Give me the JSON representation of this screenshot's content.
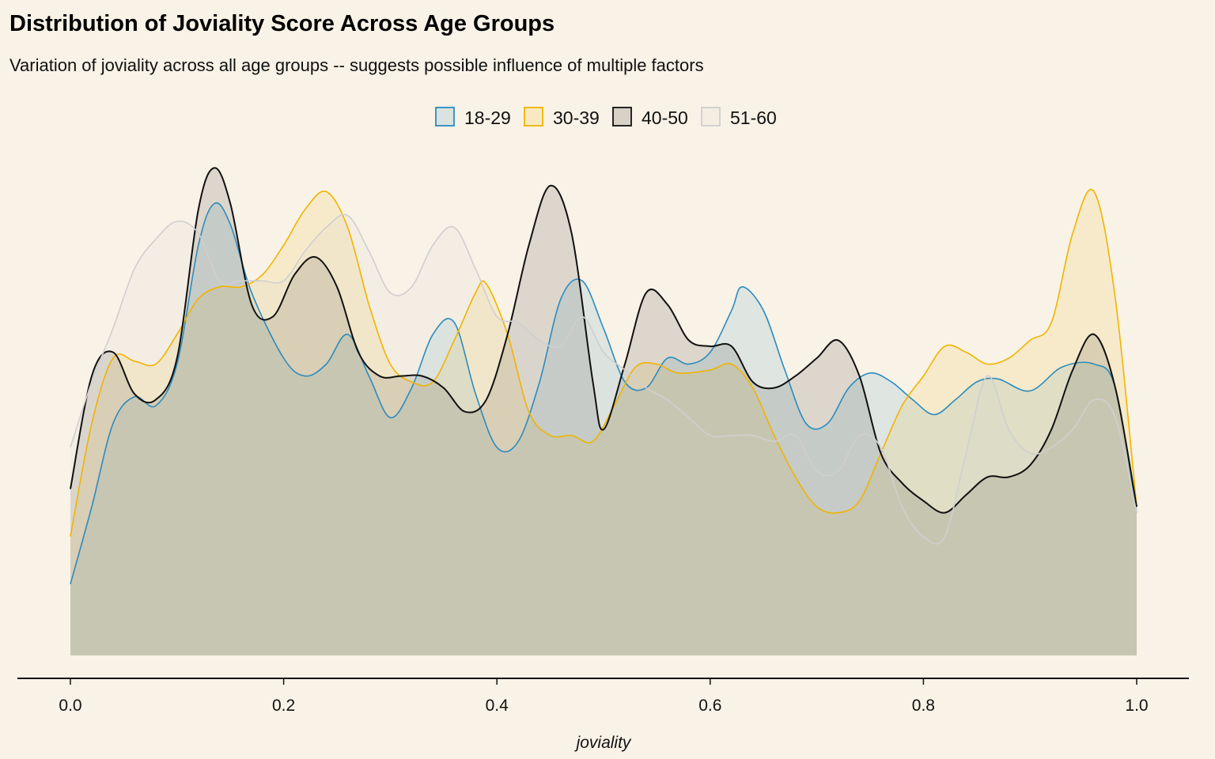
{
  "title": "Distribution of Joviality Score Across Age Groups",
  "subtitle": "Variation of joviality across all age groups -- suggests possible influence of multiple factors",
  "colors": {
    "background": "#f9f2e6",
    "18-29": "#2b8cbe",
    "30-39": "#f0b400",
    "40-50": "#111111",
    "51-60": "#cfcfcf"
  },
  "chart_data": {
    "type": "area",
    "title": "Distribution of Joviality Score Across Age Groups",
    "subtitle": "Variation of joviality across all age groups -- suggests possible influence of multiple factors",
    "xlabel": "joviality",
    "ylabel": "",
    "xlim": [
      0.0,
      1.0
    ],
    "ylim": [
      0.0,
      1.6
    ],
    "y_axis_shown": false,
    "grid": false,
    "legend_position": "top",
    "x_ticks": [
      "0.0",
      "0.2",
      "0.4",
      "0.6",
      "0.8",
      "1.0"
    ],
    "x_tick_values": [
      0.0,
      0.2,
      0.4,
      0.6,
      0.8,
      1.0
    ],
    "series": [
      {
        "name": "18-29",
        "color": "#2b8cbe",
        "points": [
          [
            0.0,
            0.24
          ],
          [
            0.02,
            0.5
          ],
          [
            0.04,
            0.78
          ],
          [
            0.06,
            0.87
          ],
          [
            0.08,
            0.84
          ],
          [
            0.1,
            0.98
          ],
          [
            0.12,
            1.38
          ],
          [
            0.135,
            1.52
          ],
          [
            0.15,
            1.45
          ],
          [
            0.17,
            1.22
          ],
          [
            0.2,
            1.0
          ],
          [
            0.22,
            0.94
          ],
          [
            0.24,
            0.98
          ],
          [
            0.26,
            1.08
          ],
          [
            0.28,
            0.94
          ],
          [
            0.3,
            0.8
          ],
          [
            0.32,
            0.9
          ],
          [
            0.34,
            1.08
          ],
          [
            0.36,
            1.12
          ],
          [
            0.38,
            0.88
          ],
          [
            0.4,
            0.7
          ],
          [
            0.42,
            0.72
          ],
          [
            0.44,
            0.92
          ],
          [
            0.46,
            1.2
          ],
          [
            0.48,
            1.26
          ],
          [
            0.5,
            1.1
          ],
          [
            0.52,
            0.92
          ],
          [
            0.54,
            0.9
          ],
          [
            0.56,
            1.0
          ],
          [
            0.58,
            0.98
          ],
          [
            0.6,
            1.02
          ],
          [
            0.62,
            1.16
          ],
          [
            0.63,
            1.24
          ],
          [
            0.65,
            1.16
          ],
          [
            0.67,
            0.96
          ],
          [
            0.69,
            0.78
          ],
          [
            0.71,
            0.78
          ],
          [
            0.73,
            0.9
          ],
          [
            0.75,
            0.95
          ],
          [
            0.77,
            0.92
          ],
          [
            0.79,
            0.86
          ],
          [
            0.81,
            0.81
          ],
          [
            0.83,
            0.86
          ],
          [
            0.85,
            0.92
          ],
          [
            0.87,
            0.93
          ],
          [
            0.9,
            0.89
          ],
          [
            0.93,
            0.97
          ],
          [
            0.96,
            0.98
          ],
          [
            0.98,
            0.9
          ],
          [
            1.0,
            0.48
          ]
        ]
      },
      {
        "name": "30-39",
        "color": "#f0b400",
        "points": [
          [
            0.0,
            0.4
          ],
          [
            0.02,
            0.78
          ],
          [
            0.04,
            1.0
          ],
          [
            0.06,
            0.99
          ],
          [
            0.08,
            0.98
          ],
          [
            0.1,
            1.08
          ],
          [
            0.12,
            1.2
          ],
          [
            0.14,
            1.24
          ],
          [
            0.16,
            1.24
          ],
          [
            0.18,
            1.28
          ],
          [
            0.2,
            1.38
          ],
          [
            0.22,
            1.5
          ],
          [
            0.24,
            1.56
          ],
          [
            0.26,
            1.44
          ],
          [
            0.28,
            1.18
          ],
          [
            0.3,
            0.98
          ],
          [
            0.32,
            0.92
          ],
          [
            0.34,
            0.92
          ],
          [
            0.36,
            1.06
          ],
          [
            0.38,
            1.22
          ],
          [
            0.39,
            1.25
          ],
          [
            0.41,
            1.08
          ],
          [
            0.43,
            0.82
          ],
          [
            0.45,
            0.74
          ],
          [
            0.47,
            0.74
          ],
          [
            0.49,
            0.72
          ],
          [
            0.51,
            0.84
          ],
          [
            0.53,
            0.97
          ],
          [
            0.55,
            0.98
          ],
          [
            0.57,
            0.95
          ],
          [
            0.6,
            0.96
          ],
          [
            0.62,
            0.98
          ],
          [
            0.64,
            0.9
          ],
          [
            0.66,
            0.74
          ],
          [
            0.68,
            0.6
          ],
          [
            0.7,
            0.5
          ],
          [
            0.72,
            0.48
          ],
          [
            0.74,
            0.52
          ],
          [
            0.76,
            0.68
          ],
          [
            0.78,
            0.84
          ],
          [
            0.8,
            0.94
          ],
          [
            0.82,
            1.04
          ],
          [
            0.84,
            1.02
          ],
          [
            0.86,
            0.98
          ],
          [
            0.88,
            1.0
          ],
          [
            0.9,
            1.06
          ],
          [
            0.92,
            1.12
          ],
          [
            0.94,
            1.42
          ],
          [
            0.96,
            1.56
          ],
          [
            0.98,
            1.2
          ],
          [
            1.0,
            0.5
          ]
        ]
      },
      {
        "name": "40-50",
        "color": "#111111",
        "points": [
          [
            0.0,
            0.56
          ],
          [
            0.02,
            0.94
          ],
          [
            0.04,
            1.02
          ],
          [
            0.06,
            0.88
          ],
          [
            0.08,
            0.86
          ],
          [
            0.1,
            1.0
          ],
          [
            0.12,
            1.5
          ],
          [
            0.135,
            1.64
          ],
          [
            0.15,
            1.52
          ],
          [
            0.17,
            1.18
          ],
          [
            0.19,
            1.14
          ],
          [
            0.21,
            1.28
          ],
          [
            0.23,
            1.34
          ],
          [
            0.25,
            1.24
          ],
          [
            0.27,
            1.02
          ],
          [
            0.29,
            0.94
          ],
          [
            0.31,
            0.94
          ],
          [
            0.33,
            0.94
          ],
          [
            0.35,
            0.9
          ],
          [
            0.37,
            0.82
          ],
          [
            0.39,
            0.86
          ],
          [
            0.41,
            1.08
          ],
          [
            0.43,
            1.38
          ],
          [
            0.45,
            1.58
          ],
          [
            0.47,
            1.42
          ],
          [
            0.49,
            0.92
          ],
          [
            0.5,
            0.76
          ],
          [
            0.52,
            0.98
          ],
          [
            0.54,
            1.22
          ],
          [
            0.56,
            1.18
          ],
          [
            0.58,
            1.06
          ],
          [
            0.6,
            1.04
          ],
          [
            0.62,
            1.04
          ],
          [
            0.64,
            0.92
          ],
          [
            0.66,
            0.9
          ],
          [
            0.68,
            0.94
          ],
          [
            0.7,
            1.0
          ],
          [
            0.72,
            1.06
          ],
          [
            0.74,
            0.94
          ],
          [
            0.76,
            0.68
          ],
          [
            0.78,
            0.58
          ],
          [
            0.8,
            0.52
          ],
          [
            0.82,
            0.48
          ],
          [
            0.84,
            0.54
          ],
          [
            0.86,
            0.6
          ],
          [
            0.88,
            0.6
          ],
          [
            0.9,
            0.64
          ],
          [
            0.92,
            0.76
          ],
          [
            0.94,
            0.96
          ],
          [
            0.96,
            1.08
          ],
          [
            0.98,
            0.9
          ],
          [
            1.0,
            0.5
          ]
        ]
      },
      {
        "name": "51-60",
        "color": "#cfcfcf",
        "points": [
          [
            0.0,
            0.7
          ],
          [
            0.02,
            0.92
          ],
          [
            0.04,
            1.1
          ],
          [
            0.06,
            1.3
          ],
          [
            0.08,
            1.4
          ],
          [
            0.1,
            1.46
          ],
          [
            0.12,
            1.42
          ],
          [
            0.14,
            1.26
          ],
          [
            0.16,
            1.26
          ],
          [
            0.18,
            1.26
          ],
          [
            0.2,
            1.26
          ],
          [
            0.22,
            1.36
          ],
          [
            0.24,
            1.44
          ],
          [
            0.26,
            1.48
          ],
          [
            0.28,
            1.36
          ],
          [
            0.3,
            1.22
          ],
          [
            0.32,
            1.24
          ],
          [
            0.34,
            1.38
          ],
          [
            0.36,
            1.44
          ],
          [
            0.38,
            1.3
          ],
          [
            0.4,
            1.14
          ],
          [
            0.42,
            1.12
          ],
          [
            0.44,
            1.06
          ],
          [
            0.46,
            1.04
          ],
          [
            0.48,
            1.14
          ],
          [
            0.5,
            1.02
          ],
          [
            0.52,
            0.96
          ],
          [
            0.54,
            0.9
          ],
          [
            0.56,
            0.86
          ],
          [
            0.58,
            0.8
          ],
          [
            0.6,
            0.74
          ],
          [
            0.62,
            0.74
          ],
          [
            0.64,
            0.74
          ],
          [
            0.66,
            0.72
          ],
          [
            0.68,
            0.74
          ],
          [
            0.7,
            0.62
          ],
          [
            0.72,
            0.62
          ],
          [
            0.74,
            0.74
          ],
          [
            0.76,
            0.7
          ],
          [
            0.78,
            0.5
          ],
          [
            0.8,
            0.4
          ],
          [
            0.82,
            0.4
          ],
          [
            0.84,
            0.68
          ],
          [
            0.86,
            0.94
          ],
          [
            0.88,
            0.76
          ],
          [
            0.9,
            0.68
          ],
          [
            0.92,
            0.7
          ],
          [
            0.94,
            0.76
          ],
          [
            0.96,
            0.86
          ],
          [
            0.98,
            0.8
          ],
          [
            1.0,
            0.48
          ]
        ]
      }
    ]
  }
}
